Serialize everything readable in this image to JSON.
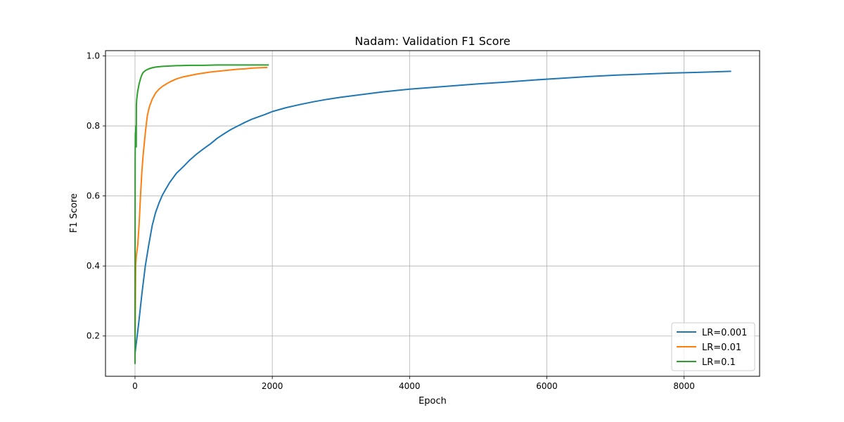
{
  "chart_data": {
    "type": "line",
    "title": "Nadam: Validation F1 Score",
    "xlabel": "Epoch",
    "ylabel": "F1 Score",
    "xlim": [
      -430,
      9100
    ],
    "ylim": [
      0.085,
      1.015
    ],
    "xticks": [
      0,
      2000,
      4000,
      6000,
      8000
    ],
    "yticks": [
      0.2,
      0.4,
      0.6,
      0.8,
      1.0
    ],
    "xtick_labels": [
      "0",
      "2000",
      "4000",
      "6000",
      "8000"
    ],
    "ytick_labels": [
      "0.2",
      "0.4",
      "0.6",
      "0.8",
      "1.0"
    ],
    "grid": true,
    "legend_position": "bottom-right",
    "series": [
      {
        "name": "LR=0.001",
        "color": "#1f77b4",
        "x": [
          0,
          50,
          100,
          150,
          200,
          250,
          300,
          350,
          400,
          500,
          600,
          700,
          800,
          900,
          1000,
          1100,
          1200,
          1300,
          1400,
          1500,
          1600,
          1700,
          1800,
          1900,
          2000,
          2200,
          2400,
          2600,
          2800,
          3000,
          3200,
          3400,
          3600,
          3800,
          4000,
          4200,
          4400,
          4600,
          4800,
          5000,
          5400,
          5800,
          6200,
          6600,
          7000,
          7400,
          7800,
          8200,
          8686
        ],
        "y": [
          0.15,
          0.23,
          0.32,
          0.4,
          0.46,
          0.515,
          0.553,
          0.58,
          0.603,
          0.637,
          0.664,
          0.683,
          0.703,
          0.72,
          0.735,
          0.749,
          0.765,
          0.778,
          0.79,
          0.8,
          0.81,
          0.819,
          0.826,
          0.833,
          0.841,
          0.852,
          0.861,
          0.869,
          0.876,
          0.882,
          0.887,
          0.892,
          0.897,
          0.901,
          0.905,
          0.908,
          0.911,
          0.914,
          0.917,
          0.92,
          0.925,
          0.931,
          0.936,
          0.941,
          0.945,
          0.948,
          0.951,
          0.953,
          0.956
        ]
      },
      {
        "name": "LR=0.01",
        "color": "#ff7f0e",
        "x": [
          0,
          10,
          20,
          40,
          60,
          80,
          100,
          120,
          150,
          180,
          210,
          250,
          300,
          350,
          400,
          500,
          600,
          700,
          800,
          900,
          1000,
          1100,
          1200,
          1300,
          1400,
          1500,
          1600,
          1700,
          1800,
          1930
        ],
        "y": [
          0.155,
          0.4,
          0.43,
          0.46,
          0.52,
          0.6,
          0.67,
          0.72,
          0.78,
          0.83,
          0.855,
          0.876,
          0.894,
          0.905,
          0.913,
          0.925,
          0.934,
          0.94,
          0.944,
          0.948,
          0.951,
          0.954,
          0.956,
          0.958,
          0.96,
          0.962,
          0.963,
          0.965,
          0.966,
          0.967
        ]
      },
      {
        "name": "LR=0.1",
        "color": "#2ca02c",
        "x": [
          0,
          2,
          5,
          8,
          12,
          18,
          20,
          25,
          30,
          40,
          60,
          80,
          100,
          120,
          150,
          200,
          250,
          300,
          400,
          500,
          600,
          800,
          1000,
          1200,
          1400,
          1600,
          1800,
          1950
        ],
        "y": [
          0.12,
          0.7,
          0.78,
          0.76,
          0.8,
          0.74,
          0.86,
          0.875,
          0.885,
          0.9,
          0.92,
          0.935,
          0.946,
          0.953,
          0.958,
          0.963,
          0.966,
          0.968,
          0.97,
          0.971,
          0.972,
          0.973,
          0.973,
          0.974,
          0.974,
          0.974,
          0.974,
          0.974
        ]
      }
    ]
  }
}
